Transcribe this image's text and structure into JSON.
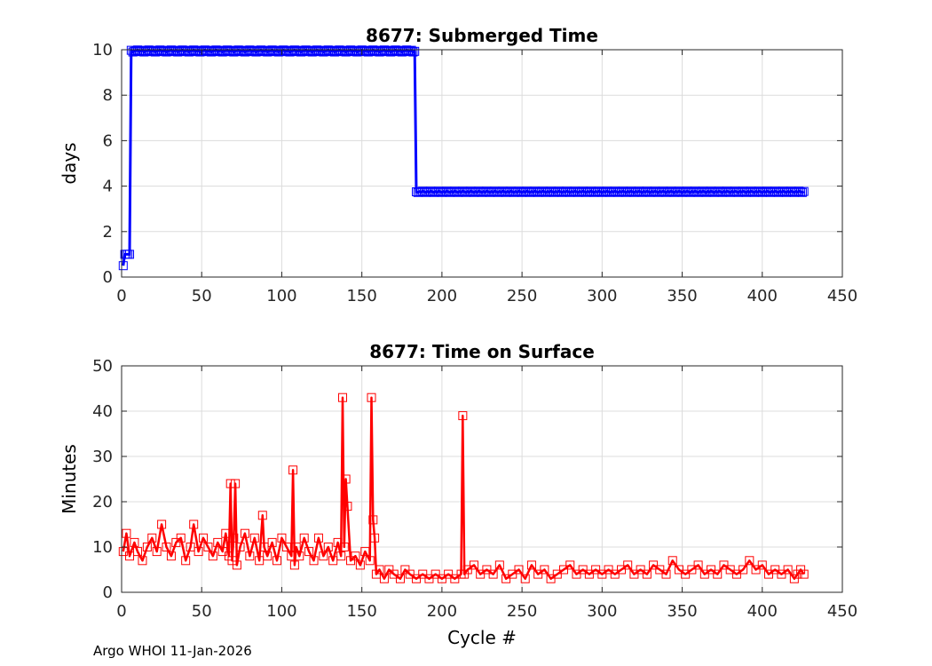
{
  "footer": "Argo WHOI 11-Jan-2026",
  "colors": {
    "top_series": "#0000ff",
    "bottom_series": "#ff0000",
    "grid": "#dcdcdc",
    "axis": "#262626"
  },
  "chart_data": [
    {
      "type": "line",
      "title": "8677: Submerged Time",
      "xlabel": "",
      "ylabel": "days",
      "xlim": [
        0,
        450
      ],
      "ylim": [
        0,
        10
      ],
      "xticks": [
        0,
        50,
        100,
        150,
        200,
        250,
        300,
        350,
        400,
        450
      ],
      "yticks": [
        0,
        2,
        4,
        6,
        8,
        10
      ],
      "grid": true,
      "marker": "square",
      "series": [
        {
          "x": [
            1,
            2,
            3,
            4,
            5,
            6,
            183,
            184,
            426
          ],
          "values": [
            0.5,
            1.0,
            1.0,
            1.0,
            1.0,
            9.9,
            9.9,
            3.8,
            3.75
          ]
        }
      ],
      "notes_levels": {
        "cycles_6_to_183_days": 9.95,
        "cycles_184_to_426_days": 3.75
      }
    },
    {
      "type": "line",
      "title": "8677: Time on Surface",
      "xlabel": "Cycle #",
      "ylabel": "Minutes",
      "xlim": [
        0,
        450
      ],
      "ylim": [
        0,
        50
      ],
      "xticks": [
        0,
        50,
        100,
        150,
        200,
        250,
        300,
        350,
        400,
        450
      ],
      "yticks": [
        0,
        10,
        20,
        30,
        40,
        50
      ],
      "grid": true,
      "marker": "square",
      "series": [
        {
          "x": [
            1,
            3,
            5,
            8,
            10,
            13,
            16,
            19,
            22,
            25,
            28,
            31,
            34,
            37,
            40,
            43,
            45,
            48,
            51,
            54,
            57,
            60,
            63,
            65,
            67,
            68,
            69,
            70,
            71,
            72,
            74,
            77,
            80,
            83,
            86,
            88,
            89,
            91,
            94,
            97,
            100,
            103,
            106,
            107,
            108,
            109,
            111,
            114,
            117,
            120,
            123,
            126,
            129,
            132,
            135,
            137,
            138,
            139,
            140,
            141,
            143,
            146,
            149,
            152,
            155,
            156,
            157,
            158,
            159,
            161,
            164,
            167,
            170,
            174,
            177,
            180,
            184,
            188,
            192,
            196,
            200,
            204,
            208,
            212,
            213,
            214,
            216,
            220,
            224,
            228,
            232,
            236,
            240,
            244,
            248,
            252,
            256,
            260,
            264,
            268,
            272,
            276,
            280,
            284,
            288,
            292,
            296,
            300,
            304,
            308,
            312,
            316,
            320,
            324,
            328,
            332,
            336,
            340,
            344,
            348,
            352,
            356,
            360,
            364,
            368,
            372,
            376,
            380,
            384,
            388,
            392,
            396,
            400,
            404,
            408,
            412,
            416,
            420,
            422,
            424,
            426
          ],
          "values": [
            9,
            13,
            8,
            11,
            9,
            7,
            10,
            12,
            9,
            15,
            10,
            8,
            11,
            12,
            7,
            10,
            15,
            9,
            12,
            10,
            8,
            11,
            9,
            13,
            8,
            24,
            7,
            12,
            24,
            6,
            10,
            13,
            8,
            12,
            7,
            17,
            10,
            8,
            11,
            7,
            12,
            10,
            8,
            27,
            6,
            10,
            8,
            12,
            9,
            7,
            12,
            8,
            10,
            7,
            11,
            8,
            43,
            10,
            25,
            19,
            7,
            8,
            6,
            9,
            7,
            43,
            16,
            12,
            4,
            5,
            3,
            5,
            4,
            3,
            5,
            4,
            3,
            4,
            3,
            4,
            3,
            4,
            3,
            4,
            39,
            4,
            5,
            6,
            4,
            5,
            4,
            6,
            3,
            4,
            5,
            3,
            6,
            4,
            5,
            3,
            4,
            5,
            6,
            4,
            5,
            4,
            5,
            4,
            5,
            4,
            5,
            6,
            4,
            5,
            4,
            6,
            5,
            4,
            7,
            5,
            4,
            5,
            6,
            4,
            5,
            4,
            6,
            5,
            4,
            5,
            7,
            5,
            6,
            4,
            5,
            4,
            5,
            3,
            4,
            5,
            4
          ]
        }
      ]
    }
  ]
}
